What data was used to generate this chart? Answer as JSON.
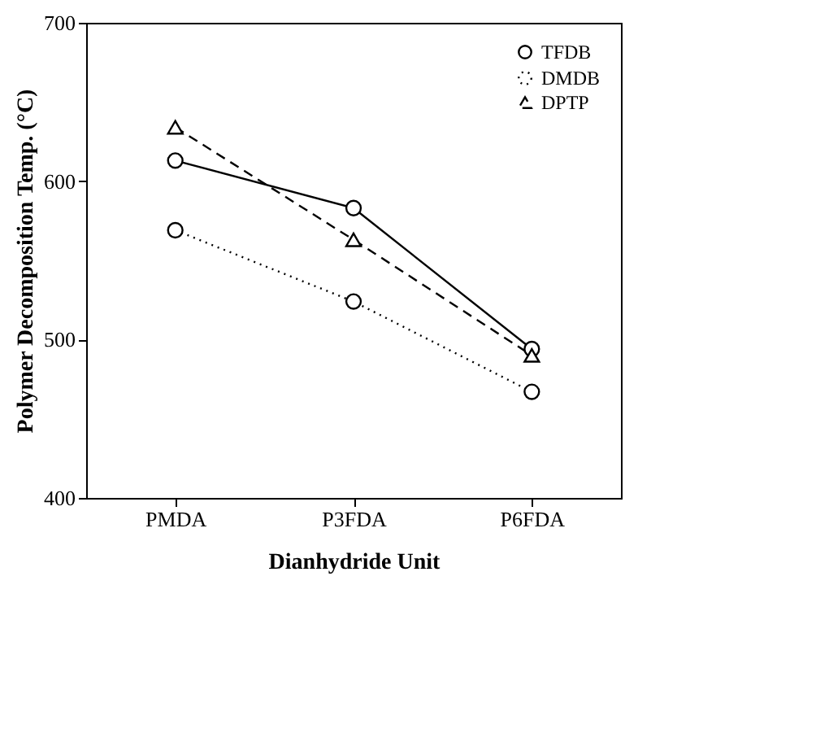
{
  "chart_data": {
    "type": "line",
    "xlabel": "Dianhydride Unit",
    "ylabel": "Polymer Decomposition Temp. (°C)",
    "categories": [
      "PMDA",
      "P3FDA",
      "P6FDA"
    ],
    "series": [
      {
        "name": "TFDB",
        "color": "#000000",
        "values": [
          613,
          583,
          494
        ],
        "marker": "circle",
        "line_style": "solid"
      },
      {
        "name": "DMDB",
        "color": "#000000",
        "values": [
          569,
          524,
          467
        ],
        "marker": "circle",
        "line_style": "dotted"
      },
      {
        "name": "DPTP",
        "color": "#000000",
        "values": [
          634,
          563,
          490
        ],
        "marker": "triangle",
        "line_style": "dashed"
      }
    ],
    "ylim": [
      400,
      700
    ],
    "yticks": [
      400,
      500,
      600,
      700
    ],
    "grid": false,
    "legend": "top right"
  }
}
